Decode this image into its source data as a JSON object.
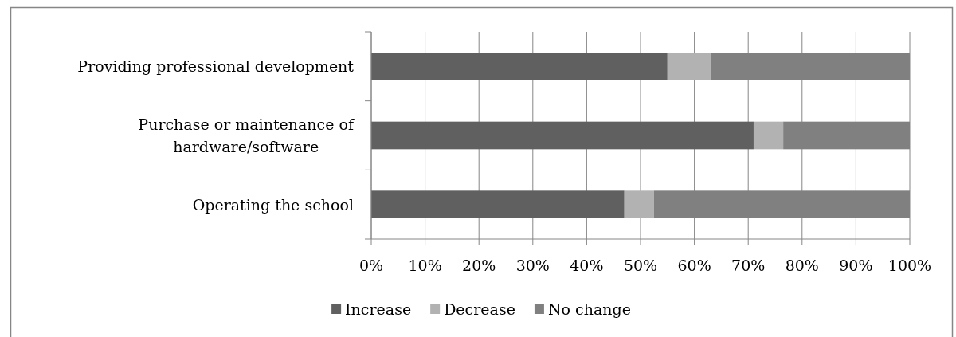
{
  "chart_data": {
    "type": "bar",
    "orientation": "horizontal",
    "stacked": true,
    "categories": [
      "Providing professional development",
      "Purchase or maintenance of hardware/software",
      "Operating the school"
    ],
    "series": [
      {
        "name": "Increase",
        "color": "#606060",
        "values": [
          55,
          71,
          47
        ]
      },
      {
        "name": "Decrease",
        "color": "#b2b2b2",
        "values": [
          8,
          5.5,
          5.5
        ]
      },
      {
        "name": "No change",
        "color": "#808080",
        "values": [
          37,
          23.5,
          47.5
        ]
      }
    ],
    "xlim": [
      0,
      100
    ],
    "xticks": [
      {
        "value": 0,
        "label": "0%"
      },
      {
        "value": 10,
        "label": "10%"
      },
      {
        "value": 20,
        "label": "20%"
      },
      {
        "value": 30,
        "label": "30%"
      },
      {
        "value": 40,
        "label": "40%"
      },
      {
        "value": 50,
        "label": "50%"
      },
      {
        "value": 60,
        "label": "60%"
      },
      {
        "value": 70,
        "label": "70%"
      },
      {
        "value": 80,
        "label": "80%"
      },
      {
        "value": 90,
        "label": "90%"
      },
      {
        "value": 100,
        "label": "100%"
      }
    ],
    "grid": "x",
    "legend": "bottom"
  }
}
